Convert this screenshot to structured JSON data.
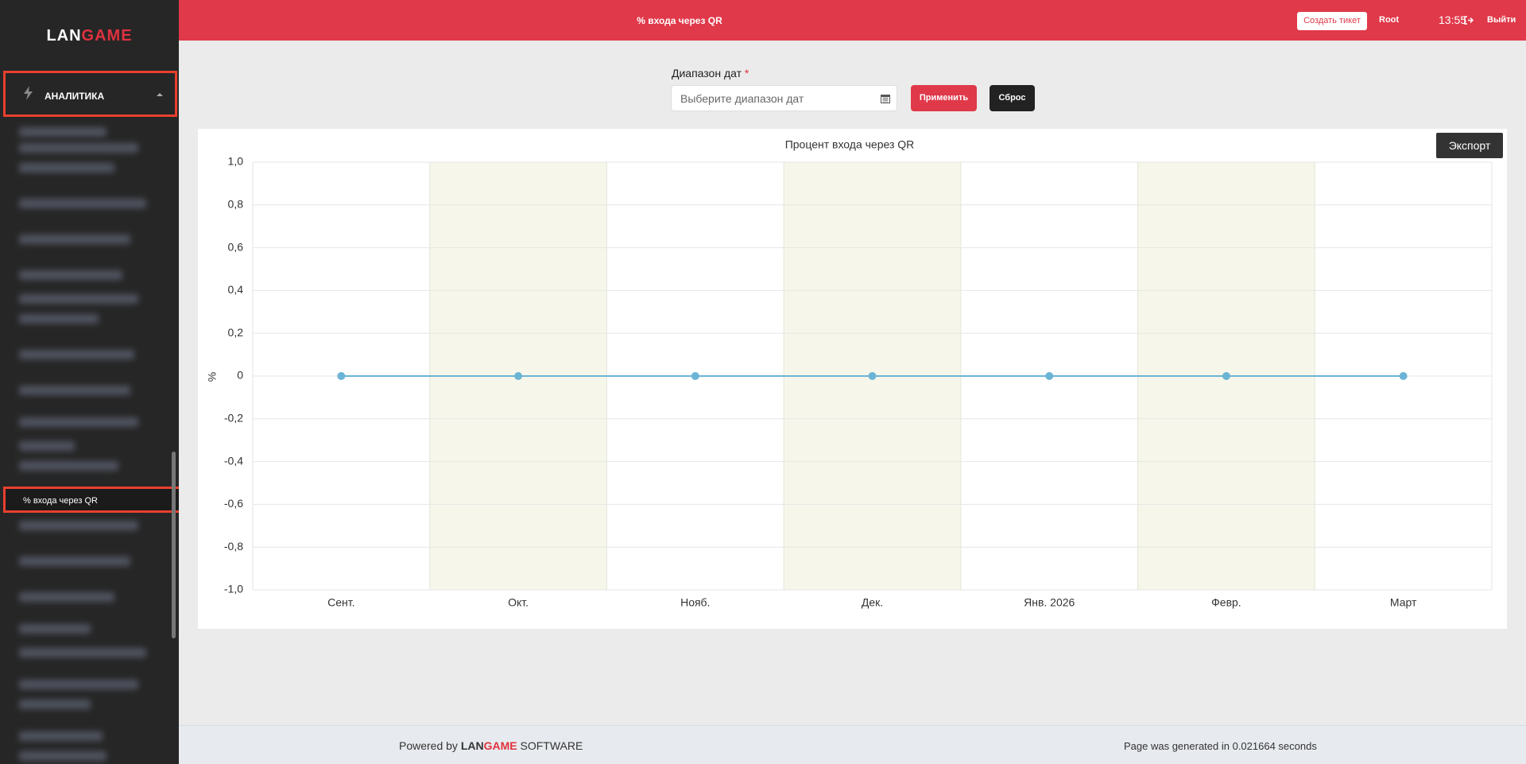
{
  "sidebar": {
    "logo": {
      "first": "LAN",
      "second": "GAME"
    },
    "section": "АНАЛИТИКА",
    "active_item": "% входа через QR"
  },
  "topbar": {
    "title": "% входа через QR",
    "ticket_button": "Создать тикет",
    "user": "Root",
    "time": "13:55",
    "logout": "Выйти"
  },
  "form": {
    "label": "Диапазон дат",
    "required_mark": "*",
    "placeholder": "Выберите диапазон дат",
    "apply": "Применить",
    "reset": "Сброс"
  },
  "export_button": "Экспорт",
  "chart_data": {
    "type": "line",
    "title": "Процент входа через QR",
    "y_label": "%",
    "categories": [
      "Сент.",
      "Окт.",
      "Нояб.",
      "Дек.",
      "Янв. 2026",
      "Февр.",
      "Март"
    ],
    "series": [
      {
        "name": "% входа через QR",
        "color": "#6cb4d6",
        "values": [
          0,
          0,
          0,
          0,
          0,
          0,
          0
        ]
      }
    ],
    "ylim": [
      -1.0,
      1.0
    ],
    "yticks": [
      {
        "value": -1.0,
        "label": "-1,0"
      },
      {
        "value": -0.8,
        "label": "-0,8"
      },
      {
        "value": -0.6,
        "label": "-0,6"
      },
      {
        "value": -0.4,
        "label": "-0,4"
      },
      {
        "value": -0.2,
        "label": "-0,2"
      },
      0,
      {
        "value": 0.2,
        "label": "0,2"
      },
      {
        "value": 0.4,
        "label": "0,4"
      },
      {
        "value": 0.6,
        "label": "0,6"
      },
      {
        "value": 0.8,
        "label": "0,8"
      },
      {
        "value": 1.0,
        "label": "1,0"
      }
    ],
    "grid": true,
    "legend": false
  },
  "footer": {
    "powered": "Powered by",
    "brand_first": "LAN",
    "brand_second": "GAME",
    "software": "SOFTWARE",
    "generated": "Page was generated in 0.021664 seconds"
  }
}
